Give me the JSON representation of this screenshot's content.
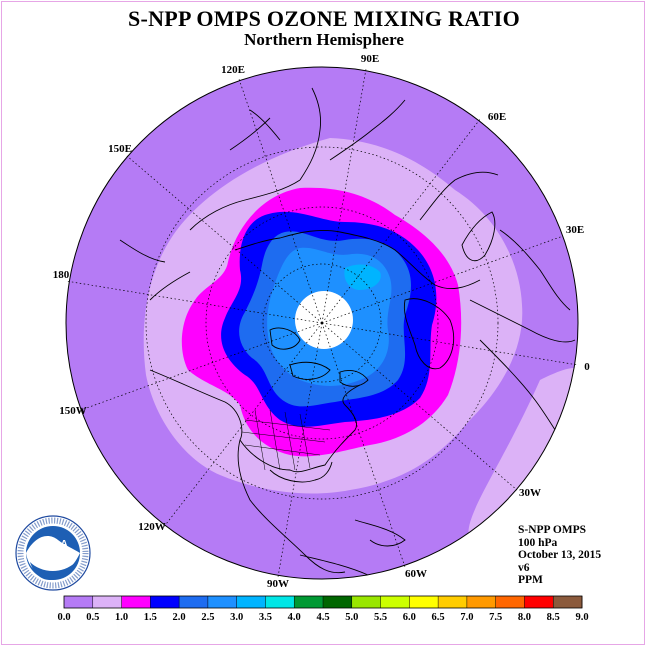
{
  "title": "S-NPP OMPS OZONE MIXING RATIO",
  "subtitle": "Northern Hemisphere",
  "info": {
    "instrument": "S-NPP OMPS",
    "level": "100 hPa",
    "date": "October 13, 2015",
    "version": "v6",
    "units": "PPM"
  },
  "longitude_labels": [
    "90E",
    "60E",
    "30E",
    "0",
    "30W",
    "60W",
    "90W",
    "120W",
    "150W",
    "180",
    "150E",
    "120E"
  ],
  "logo": {
    "text": "NOAA",
    "ring_text": "NATIONAL OCEANIC AND ATMOSPHERIC ADMINISTRATION · U.S. DEPARTMENT OF COMMERCE"
  },
  "colorbar": {
    "ticks": [
      "0.0",
      "0.5",
      "1.0",
      "1.5",
      "2.0",
      "2.5",
      "3.0",
      "3.5",
      "4.0",
      "4.5",
      "5.0",
      "5.5",
      "6.0",
      "6.5",
      "7.0",
      "7.5",
      "8.0",
      "8.5",
      "9.0"
    ],
    "colors": [
      "#b57bf5",
      "#dcb2f7",
      "#ff00ff",
      "#0000ff",
      "#1e6cf0",
      "#1e90ff",
      "#00b4ff",
      "#00e6e6",
      "#009933",
      "#006600",
      "#99e600",
      "#ccff00",
      "#ffff00",
      "#ffcc00",
      "#ff9900",
      "#ff6600",
      "#ff0000",
      "#8b5a3c"
    ]
  },
  "map_colors": {
    "band_0_05": "#b57bf5",
    "band_05_10": "#dcb2f7",
    "band_10_15": "#ff00ff",
    "band_15_20": "#0000ff",
    "band_20_25": "#1e6cf0",
    "band_25_30": "#1e90ff",
    "band_30_35": "#00b4ff",
    "no_data": "#ffffff"
  }
}
